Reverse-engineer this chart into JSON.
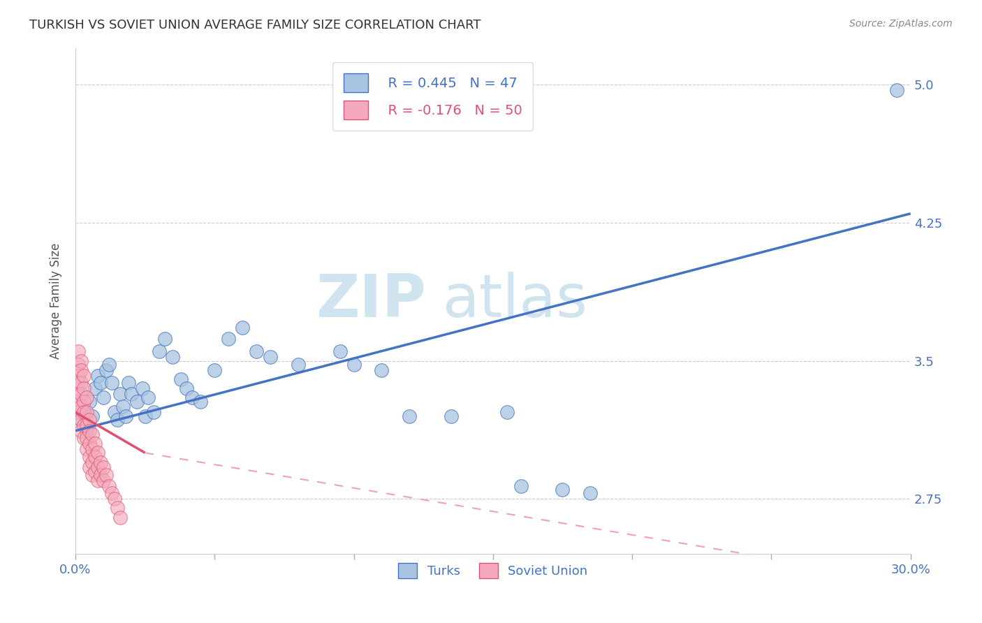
{
  "title": "TURKISH VS SOVIET UNION AVERAGE FAMILY SIZE CORRELATION CHART",
  "source": "Source: ZipAtlas.com",
  "ylabel": "Average Family Size",
  "yticks": [
    2.75,
    3.5,
    4.25,
    5.0
  ],
  "xmin": 0.0,
  "xmax": 0.3,
  "ymin": 2.45,
  "ymax": 5.2,
  "blue_R": 0.445,
  "blue_N": 47,
  "pink_R": -0.176,
  "pink_N": 50,
  "blue_color": "#A8C4E0",
  "pink_color": "#F4AABC",
  "blue_line_color": "#4472C4",
  "pink_line_color": "#E05070",
  "pink_dash_color": "#F0A0B8",
  "watermark_color": "#D0E4F0",
  "background": "#FFFFFF",
  "blue_points": [
    [
      0.002,
      3.18
    ],
    [
      0.003,
      3.22
    ],
    [
      0.004,
      3.12
    ],
    [
      0.005,
      3.28
    ],
    [
      0.006,
      3.2
    ],
    [
      0.007,
      3.35
    ],
    [
      0.008,
      3.42
    ],
    [
      0.009,
      3.38
    ],
    [
      0.01,
      3.3
    ],
    [
      0.011,
      3.45
    ],
    [
      0.012,
      3.48
    ],
    [
      0.013,
      3.38
    ],
    [
      0.014,
      3.22
    ],
    [
      0.015,
      3.18
    ],
    [
      0.016,
      3.32
    ],
    [
      0.017,
      3.25
    ],
    [
      0.018,
      3.2
    ],
    [
      0.019,
      3.38
    ],
    [
      0.02,
      3.32
    ],
    [
      0.022,
      3.28
    ],
    [
      0.024,
      3.35
    ],
    [
      0.025,
      3.2
    ],
    [
      0.026,
      3.3
    ],
    [
      0.028,
      3.22
    ],
    [
      0.03,
      3.55
    ],
    [
      0.032,
      3.62
    ],
    [
      0.035,
      3.52
    ],
    [
      0.038,
      3.4
    ],
    [
      0.04,
      3.35
    ],
    [
      0.042,
      3.3
    ],
    [
      0.045,
      3.28
    ],
    [
      0.05,
      3.45
    ],
    [
      0.055,
      3.62
    ],
    [
      0.06,
      3.68
    ],
    [
      0.065,
      3.55
    ],
    [
      0.07,
      3.52
    ],
    [
      0.08,
      3.48
    ],
    [
      0.095,
      3.55
    ],
    [
      0.1,
      3.48
    ],
    [
      0.11,
      3.45
    ],
    [
      0.12,
      3.2
    ],
    [
      0.135,
      3.2
    ],
    [
      0.155,
      3.22
    ],
    [
      0.16,
      2.82
    ],
    [
      0.175,
      2.8
    ],
    [
      0.185,
      2.78
    ],
    [
      0.295,
      4.97
    ]
  ],
  "pink_points": [
    [
      0.001,
      3.55
    ],
    [
      0.001,
      3.48
    ],
    [
      0.001,
      3.42
    ],
    [
      0.001,
      3.38
    ],
    [
      0.001,
      3.32
    ],
    [
      0.001,
      3.28
    ],
    [
      0.001,
      3.22
    ],
    [
      0.002,
      3.5
    ],
    [
      0.002,
      3.45
    ],
    [
      0.002,
      3.38
    ],
    [
      0.002,
      3.32
    ],
    [
      0.002,
      3.25
    ],
    [
      0.002,
      3.18
    ],
    [
      0.002,
      3.12
    ],
    [
      0.003,
      3.42
    ],
    [
      0.003,
      3.35
    ],
    [
      0.003,
      3.28
    ],
    [
      0.003,
      3.22
    ],
    [
      0.003,
      3.15
    ],
    [
      0.003,
      3.08
    ],
    [
      0.004,
      3.3
    ],
    [
      0.004,
      3.22
    ],
    [
      0.004,
      3.15
    ],
    [
      0.004,
      3.08
    ],
    [
      0.004,
      3.02
    ],
    [
      0.005,
      3.18
    ],
    [
      0.005,
      3.12
    ],
    [
      0.005,
      3.05
    ],
    [
      0.005,
      2.98
    ],
    [
      0.005,
      2.92
    ],
    [
      0.006,
      3.1
    ],
    [
      0.006,
      3.02
    ],
    [
      0.006,
      2.95
    ],
    [
      0.006,
      2.88
    ],
    [
      0.007,
      3.05
    ],
    [
      0.007,
      2.98
    ],
    [
      0.007,
      2.9
    ],
    [
      0.008,
      3.0
    ],
    [
      0.008,
      2.92
    ],
    [
      0.008,
      2.85
    ],
    [
      0.009,
      2.95
    ],
    [
      0.009,
      2.88
    ],
    [
      0.01,
      2.92
    ],
    [
      0.01,
      2.85
    ],
    [
      0.011,
      2.88
    ],
    [
      0.012,
      2.82
    ],
    [
      0.013,
      2.78
    ],
    [
      0.014,
      2.75
    ],
    [
      0.015,
      2.7
    ],
    [
      0.016,
      2.65
    ]
  ],
  "blue_trend": [
    0.0,
    0.3,
    3.12,
    4.3
  ],
  "pink_trend_solid": [
    0.0,
    0.025,
    3.22,
    3.0
  ],
  "pink_trend_dash": [
    0.025,
    0.3,
    3.0,
    2.3
  ]
}
